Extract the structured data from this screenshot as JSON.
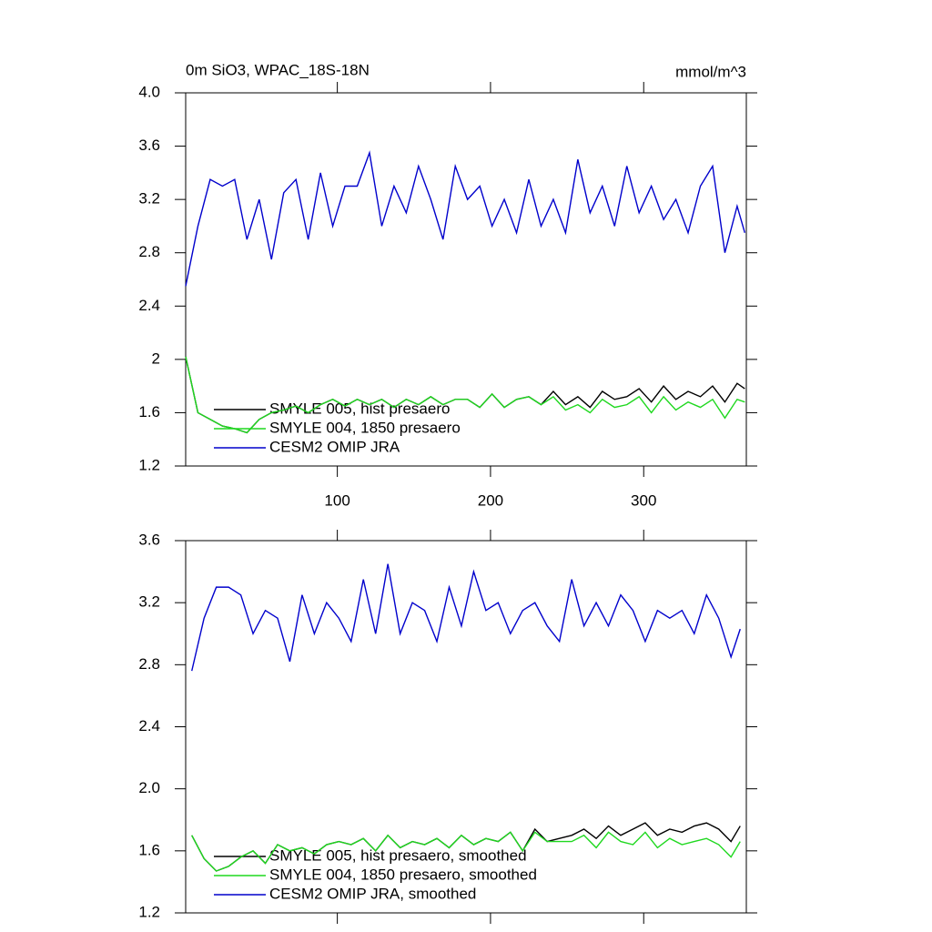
{
  "chart_data": [
    {
      "type": "line",
      "title": "0m SiO3, WPAC_18S-18N",
      "units": "mmol/m^3",
      "x": [
        1,
        9,
        17,
        25,
        33,
        41,
        49,
        57,
        65,
        73,
        81,
        89,
        97,
        105,
        113,
        121,
        129,
        137,
        145,
        153,
        161,
        169,
        177,
        185,
        193,
        201,
        209,
        217,
        225,
        233,
        241,
        249,
        257,
        265,
        273,
        281,
        289,
        297,
        305,
        313,
        321,
        329,
        337,
        345,
        353,
        361,
        366
      ],
      "series": [
        {
          "name": "SMYLE 005, hist presaero",
          "color": "#000000",
          "values": [
            2.02,
            1.6,
            1.55,
            1.5,
            1.48,
            1.45,
            1.55,
            1.6,
            1.62,
            1.65,
            1.6,
            1.66,
            1.7,
            1.65,
            1.7,
            1.66,
            1.7,
            1.64,
            1.7,
            1.66,
            1.72,
            1.66,
            1.7,
            1.7,
            1.64,
            1.74,
            1.64,
            1.7,
            1.72,
            1.66,
            1.76,
            1.66,
            1.72,
            1.64,
            1.76,
            1.7,
            1.72,
            1.78,
            1.68,
            1.8,
            1.7,
            1.76,
            1.72,
            1.8,
            1.68,
            1.82,
            1.78
          ]
        },
        {
          "name": "SMYLE 004, 1850 presaero",
          "color": "#1fd81f",
          "values": [
            2.02,
            1.6,
            1.55,
            1.5,
            1.48,
            1.45,
            1.55,
            1.6,
            1.62,
            1.65,
            1.6,
            1.66,
            1.7,
            1.65,
            1.7,
            1.66,
            1.7,
            1.64,
            1.7,
            1.66,
            1.72,
            1.66,
            1.7,
            1.7,
            1.64,
            1.74,
            1.64,
            1.7,
            1.72,
            1.66,
            1.72,
            1.62,
            1.66,
            1.6,
            1.7,
            1.64,
            1.66,
            1.72,
            1.6,
            1.72,
            1.62,
            1.68,
            1.64,
            1.7,
            1.56,
            1.7,
            1.68
          ]
        },
        {
          "name": "CESM2 OMIP JRA",
          "color": "#0000cc",
          "values": [
            2.55,
            3.0,
            3.35,
            3.3,
            3.35,
            2.9,
            3.2,
            2.75,
            3.25,
            3.35,
            2.9,
            3.4,
            3.0,
            3.3,
            3.3,
            3.55,
            3.0,
            3.3,
            3.1,
            3.45,
            3.2,
            2.9,
            3.45,
            3.2,
            3.3,
            3.0,
            3.2,
            2.95,
            3.35,
            3.0,
            3.2,
            2.95,
            3.5,
            3.1,
            3.3,
            3.0,
            3.45,
            3.1,
            3.3,
            3.05,
            3.2,
            2.95,
            3.3,
            3.45,
            2.8,
            3.15,
            2.95
          ]
        }
      ],
      "xlim": [
        1,
        367
      ],
      "xticks": [
        100,
        200,
        300
      ],
      "xtick_labels": true,
      "ylim": [
        1.2,
        4.0
      ],
      "yticks": [
        {
          "value": 1.2,
          "label": "1.2"
        },
        1.6,
        2,
        2.4,
        2.8,
        3.2,
        3.6,
        {
          "value": 4,
          "label": "4.0"
        }
      ]
    },
    {
      "type": "line",
      "x": [
        5,
        13,
        21,
        29,
        37,
        45,
        53,
        61,
        69,
        77,
        85,
        93,
        101,
        109,
        117,
        125,
        133,
        141,
        149,
        157,
        165,
        173,
        181,
        189,
        197,
        205,
        213,
        221,
        229,
        237,
        245,
        253,
        261,
        269,
        277,
        285,
        293,
        301,
        309,
        317,
        325,
        333,
        341,
        349,
        357,
        363
      ],
      "series": [
        {
          "name": "SMYLE 005, hist presaero, smoothed",
          "color": "#000000",
          "values": [
            1.7,
            1.55,
            1.47,
            1.5,
            1.56,
            1.6,
            1.52,
            1.64,
            1.6,
            1.62,
            1.58,
            1.64,
            1.66,
            1.64,
            1.68,
            1.6,
            1.7,
            1.62,
            1.66,
            1.64,
            1.68,
            1.62,
            1.7,
            1.64,
            1.68,
            1.66,
            1.72,
            1.6,
            1.74,
            1.66,
            1.68,
            1.7,
            1.74,
            1.68,
            1.76,
            1.7,
            1.74,
            1.78,
            1.7,
            1.74,
            1.72,
            1.76,
            1.78,
            1.74,
            1.66,
            1.76
          ]
        },
        {
          "name": "SMYLE 004, 1850 presaero, smoothed",
          "color": "#1fd81f",
          "values": [
            1.7,
            1.55,
            1.47,
            1.5,
            1.56,
            1.6,
            1.52,
            1.64,
            1.6,
            1.62,
            1.58,
            1.64,
            1.66,
            1.64,
            1.68,
            1.6,
            1.7,
            1.62,
            1.66,
            1.64,
            1.68,
            1.62,
            1.7,
            1.64,
            1.68,
            1.66,
            1.72,
            1.6,
            1.72,
            1.66,
            1.66,
            1.66,
            1.7,
            1.62,
            1.72,
            1.66,
            1.64,
            1.72,
            1.62,
            1.68,
            1.64,
            1.66,
            1.68,
            1.64,
            1.56,
            1.66
          ]
        },
        {
          "name": "CESM2 OMIP JRA, smoothed",
          "color": "#0000cc",
          "values": [
            2.76,
            3.1,
            3.3,
            3.3,
            3.25,
            3.0,
            3.15,
            3.1,
            2.82,
            3.25,
            3.0,
            3.2,
            3.1,
            2.95,
            3.35,
            3.0,
            3.45,
            3.0,
            3.2,
            3.15,
            2.95,
            3.3,
            3.05,
            3.4,
            3.15,
            3.2,
            3.0,
            3.15,
            3.2,
            3.05,
            2.95,
            3.35,
            3.05,
            3.2,
            3.05,
            3.25,
            3.15,
            2.95,
            3.15,
            3.1,
            3.15,
            3.0,
            3.25,
            3.1,
            2.85,
            3.03
          ]
        }
      ],
      "xlim": [
        1,
        367
      ],
      "xticks": [
        100,
        200,
        300
      ],
      "xtick_labels": false,
      "ylim": [
        1.2,
        3.6
      ],
      "yticks": [
        {
          "value": 1.2,
          "label": "1.2"
        },
        1.6,
        {
          "value": 2,
          "label": "2.0"
        },
        2.4,
        2.8,
        3.2,
        3.6
      ]
    }
  ]
}
